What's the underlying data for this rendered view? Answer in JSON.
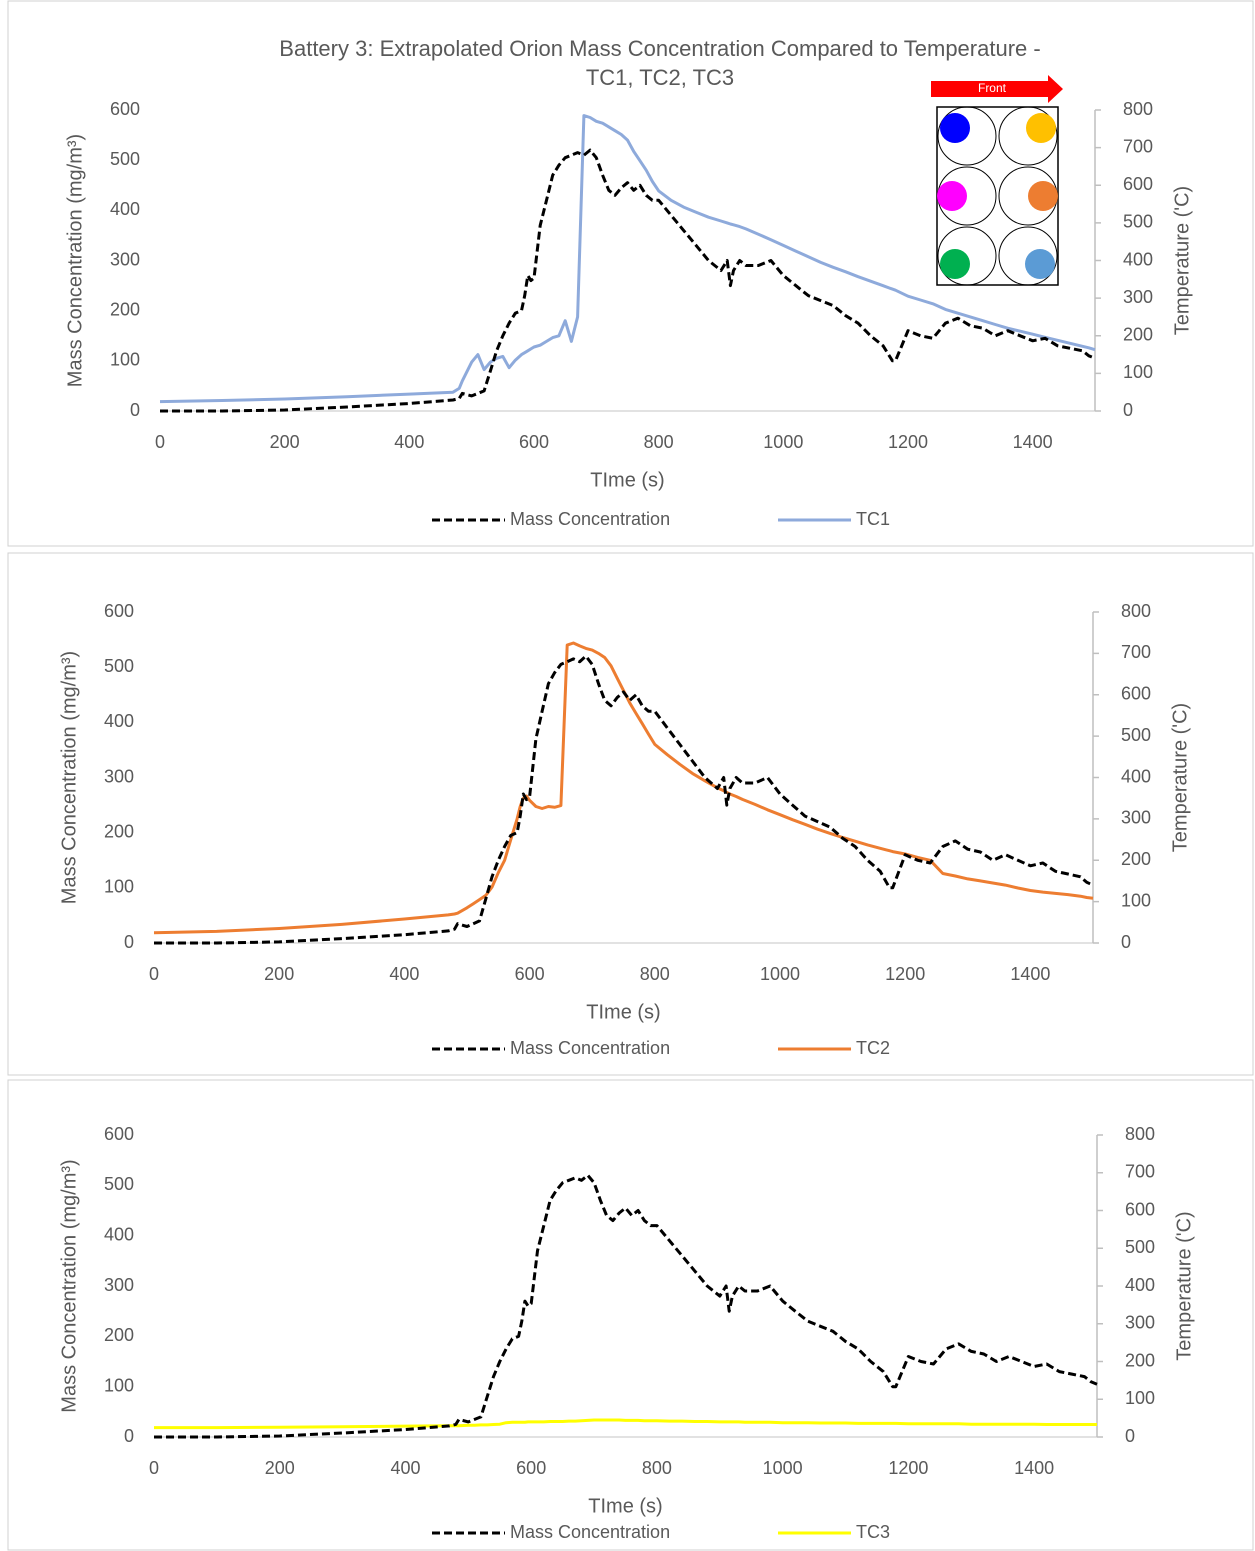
{
  "chart_data": [
    {
      "type": "line",
      "title": "Battery 3: Extrapolated Orion Mass Concentration Compared to Temperature -\nTC1, TC2, TC3",
      "annotation": "Front",
      "x_label": "TIme (s)",
      "y_label": "Mass Concentration (mg/m³)",
      "y2_label": "Temperature ('C)",
      "x": [
        0,
        100,
        200,
        300,
        400,
        470,
        480,
        485,
        500,
        510,
        520,
        530,
        540,
        550,
        560,
        570,
        580,
        585,
        590,
        595,
        600,
        610,
        620,
        630,
        640,
        650,
        660,
        670,
        680,
        690,
        700,
        710,
        720,
        730,
        740,
        750,
        760,
        770,
        780,
        790,
        800,
        820,
        840,
        860,
        880,
        900,
        910,
        915,
        920,
        930,
        940,
        960,
        980,
        1000,
        1020,
        1040,
        1060,
        1080,
        1100,
        1120,
        1140,
        1160,
        1170,
        1175,
        1180,
        1200,
        1220,
        1240,
        1260,
        1280,
        1300,
        1320,
        1340,
        1360,
        1380,
        1400,
        1420,
        1440,
        1460,
        1480,
        1490,
        1500
      ],
      "series": [
        {
          "name": "Mass Concentration",
          "color": "#000000",
          "linestyle": "dashed",
          "values": [
            0,
            0,
            2,
            8,
            15,
            22,
            25,
            35,
            30,
            35,
            40,
            80,
            120,
            150,
            175,
            195,
            200,
            230,
            270,
            260,
            265,
            370,
            420,
            470,
            490,
            505,
            510,
            515,
            510,
            520,
            505,
            470,
            440,
            430,
            445,
            455,
            440,
            450,
            430,
            420,
            420,
            390,
            360,
            330,
            300,
            280,
            300,
            250,
            280,
            300,
            290,
            290,
            300,
            270,
            250,
            230,
            220,
            210,
            190,
            175,
            150,
            130,
            110,
            100,
            100,
            160,
            150,
            145,
            175,
            185,
            170,
            165,
            150,
            160,
            150,
            140,
            145,
            130,
            125,
            120,
            110,
            105
          ]
        },
        {
          "name": "TC1",
          "color": "#8eaadb",
          "linestyle": "solid",
          "axis": "y2",
          "values": [
            25,
            28,
            32,
            38,
            45,
            50,
            60,
            80,
            130,
            150,
            110,
            130,
            140,
            145,
            115,
            135,
            150,
            155,
            160,
            165,
            170,
            175,
            185,
            195,
            200,
            240,
            185,
            250,
            785,
            780,
            770,
            765,
            755,
            745,
            735,
            720,
            690,
            665,
            640,
            610,
            585,
            560,
            542,
            528,
            515,
            505,
            500,
            497,
            495,
            490,
            484,
            470,
            455,
            440,
            425,
            410,
            395,
            382,
            370,
            357,
            345,
            333,
            327,
            324,
            321,
            305,
            295,
            285,
            270,
            260,
            250,
            240,
            230,
            220,
            212,
            204,
            196,
            188,
            180,
            172,
            168,
            163
          ]
        }
      ],
      "xlim": [
        0,
        1500
      ],
      "xticks": [
        0,
        200,
        400,
        600,
        800,
        1000,
        1200,
        1400
      ],
      "ylim": [
        0,
        600
      ],
      "yticks": [
        0,
        100,
        200,
        300,
        400,
        500,
        600
      ],
      "y2lim": [
        0,
        800
      ],
      "y2ticks": [
        0,
        100,
        200,
        300,
        400,
        500,
        600,
        700,
        800
      ],
      "legend": "bottom"
    },
    {
      "type": "line",
      "x_label": "TIme (s)",
      "y_label": "Mass Concentration (mg/m³)",
      "y2_label": "Temperature ('C)",
      "x": [
        0,
        100,
        200,
        300,
        400,
        470,
        480,
        485,
        500,
        510,
        520,
        530,
        540,
        550,
        560,
        570,
        580,
        585,
        590,
        595,
        600,
        610,
        620,
        630,
        640,
        650,
        660,
        670,
        680,
        690,
        700,
        710,
        720,
        730,
        740,
        750,
        760,
        770,
        780,
        790,
        800,
        820,
        840,
        860,
        880,
        900,
        910,
        915,
        920,
        930,
        940,
        960,
        980,
        1000,
        1020,
        1040,
        1060,
        1080,
        1100,
        1120,
        1140,
        1160,
        1170,
        1175,
        1180,
        1200,
        1220,
        1240,
        1260,
        1280,
        1300,
        1320,
        1340,
        1360,
        1380,
        1400,
        1420,
        1440,
        1460,
        1480,
        1490,
        1500
      ],
      "series": [
        {
          "name": "Mass Concentration",
          "color": "#000000",
          "linestyle": "dashed",
          "values": [
            0,
            0,
            2,
            8,
            15,
            22,
            25,
            35,
            30,
            35,
            40,
            80,
            120,
            150,
            175,
            195,
            200,
            230,
            270,
            260,
            265,
            370,
            420,
            470,
            490,
            505,
            510,
            515,
            510,
            520,
            505,
            470,
            440,
            430,
            445,
            455,
            440,
            450,
            430,
            420,
            420,
            390,
            360,
            330,
            300,
            280,
            300,
            250,
            280,
            300,
            290,
            290,
            300,
            270,
            250,
            230,
            220,
            210,
            190,
            175,
            150,
            130,
            110,
            100,
            100,
            160,
            150,
            145,
            175,
            185,
            170,
            165,
            150,
            160,
            150,
            140,
            145,
            130,
            125,
            120,
            110,
            105
          ]
        },
        {
          "name": "TC2",
          "color": "#ed7d31",
          "linestyle": "solid",
          "axis": "y2",
          "values": [
            25,
            28,
            35,
            45,
            58,
            68,
            70,
            72,
            85,
            95,
            105,
            115,
            135,
            170,
            200,
            250,
            300,
            330,
            350,
            355,
            345,
            330,
            325,
            330,
            328,
            332,
            720,
            725,
            718,
            712,
            708,
            700,
            690,
            670,
            640,
            610,
            580,
            555,
            530,
            505,
            480,
            455,
            432,
            410,
            392,
            375,
            368,
            364,
            360,
            354,
            347,
            335,
            322,
            310,
            298,
            287,
            275,
            265,
            255,
            246,
            237,
            229,
            225,
            223,
            221,
            215,
            207,
            200,
            168,
            162,
            155,
            150,
            145,
            140,
            133,
            127,
            123,
            120,
            117,
            113,
            110,
            108
          ]
        }
      ],
      "xlim": [
        0,
        1500
      ],
      "xticks": [
        0,
        200,
        400,
        600,
        800,
        1000,
        1200,
        1400
      ],
      "ylim": [
        0,
        600
      ],
      "yticks": [
        0,
        100,
        200,
        300,
        400,
        500,
        600
      ],
      "y2lim": [
        0,
        800
      ],
      "y2ticks": [
        0,
        100,
        200,
        300,
        400,
        500,
        600,
        700,
        800
      ],
      "legend": "bottom"
    },
    {
      "type": "line",
      "x_label": "TIme (s)",
      "y_label": "Mass Concentration (mg/m³)",
      "y2_label": "Temperature ('C)",
      "x": [
        0,
        100,
        200,
        300,
        400,
        470,
        480,
        485,
        500,
        510,
        520,
        530,
        540,
        550,
        560,
        570,
        580,
        585,
        590,
        595,
        600,
        610,
        620,
        630,
        640,
        650,
        660,
        670,
        680,
        690,
        700,
        710,
        720,
        730,
        740,
        750,
        760,
        770,
        780,
        790,
        800,
        820,
        840,
        860,
        880,
        900,
        910,
        915,
        920,
        930,
        940,
        960,
        980,
        1000,
        1020,
        1040,
        1060,
        1080,
        1100,
        1120,
        1140,
        1160,
        1170,
        1175,
        1180,
        1200,
        1220,
        1240,
        1260,
        1280,
        1300,
        1320,
        1340,
        1360,
        1380,
        1400,
        1420,
        1440,
        1460,
        1480,
        1490,
        1500
      ],
      "series": [
        {
          "name": "Mass Concentration",
          "color": "#000000",
          "linestyle": "dashed",
          "values": [
            0,
            0,
            2,
            8,
            15,
            22,
            25,
            35,
            30,
            35,
            40,
            80,
            120,
            150,
            175,
            195,
            200,
            230,
            270,
            260,
            265,
            370,
            420,
            470,
            490,
            505,
            510,
            515,
            510,
            520,
            505,
            470,
            440,
            430,
            445,
            455,
            440,
            450,
            430,
            420,
            420,
            390,
            360,
            330,
            300,
            280,
            300,
            250,
            280,
            300,
            290,
            290,
            300,
            270,
            250,
            230,
            220,
            210,
            190,
            175,
            150,
            130,
            110,
            100,
            100,
            160,
            150,
            145,
            175,
            185,
            170,
            165,
            150,
            160,
            150,
            140,
            145,
            130,
            125,
            120,
            110,
            105
          ]
        },
        {
          "name": "TC3",
          "color": "#ffff00",
          "linestyle": "solid",
          "axis": "y2",
          "values": [
            25,
            25,
            26,
            27,
            29,
            30,
            30,
            30,
            31,
            31,
            32,
            32,
            33,
            34,
            38,
            39,
            39,
            39,
            39,
            40,
            40,
            40,
            40,
            41,
            41,
            41,
            42,
            42,
            43,
            44,
            45,
            45,
            45,
            45,
            45,
            44,
            44,
            44,
            43,
            43,
            43,
            42,
            42,
            41,
            41,
            40,
            40,
            40,
            40,
            40,
            39,
            39,
            39,
            38,
            38,
            38,
            37,
            37,
            37,
            36,
            36,
            36,
            36,
            36,
            36,
            35,
            35,
            35,
            35,
            35,
            34,
            34,
            34,
            34,
            34,
            34,
            33,
            33,
            33,
            33,
            33,
            33
          ]
        }
      ],
      "xlim": [
        0,
        1500
      ],
      "xticks": [
        0,
        200,
        400,
        600,
        800,
        1000,
        1200,
        1400
      ],
      "ylim": [
        0,
        600
      ],
      "yticks": [
        0,
        100,
        200,
        300,
        400,
        500,
        600
      ],
      "y2lim": [
        0,
        800
      ],
      "y2ticks": [
        0,
        100,
        200,
        300,
        400,
        500,
        600,
        700,
        800
      ],
      "legend": "bottom"
    }
  ]
}
